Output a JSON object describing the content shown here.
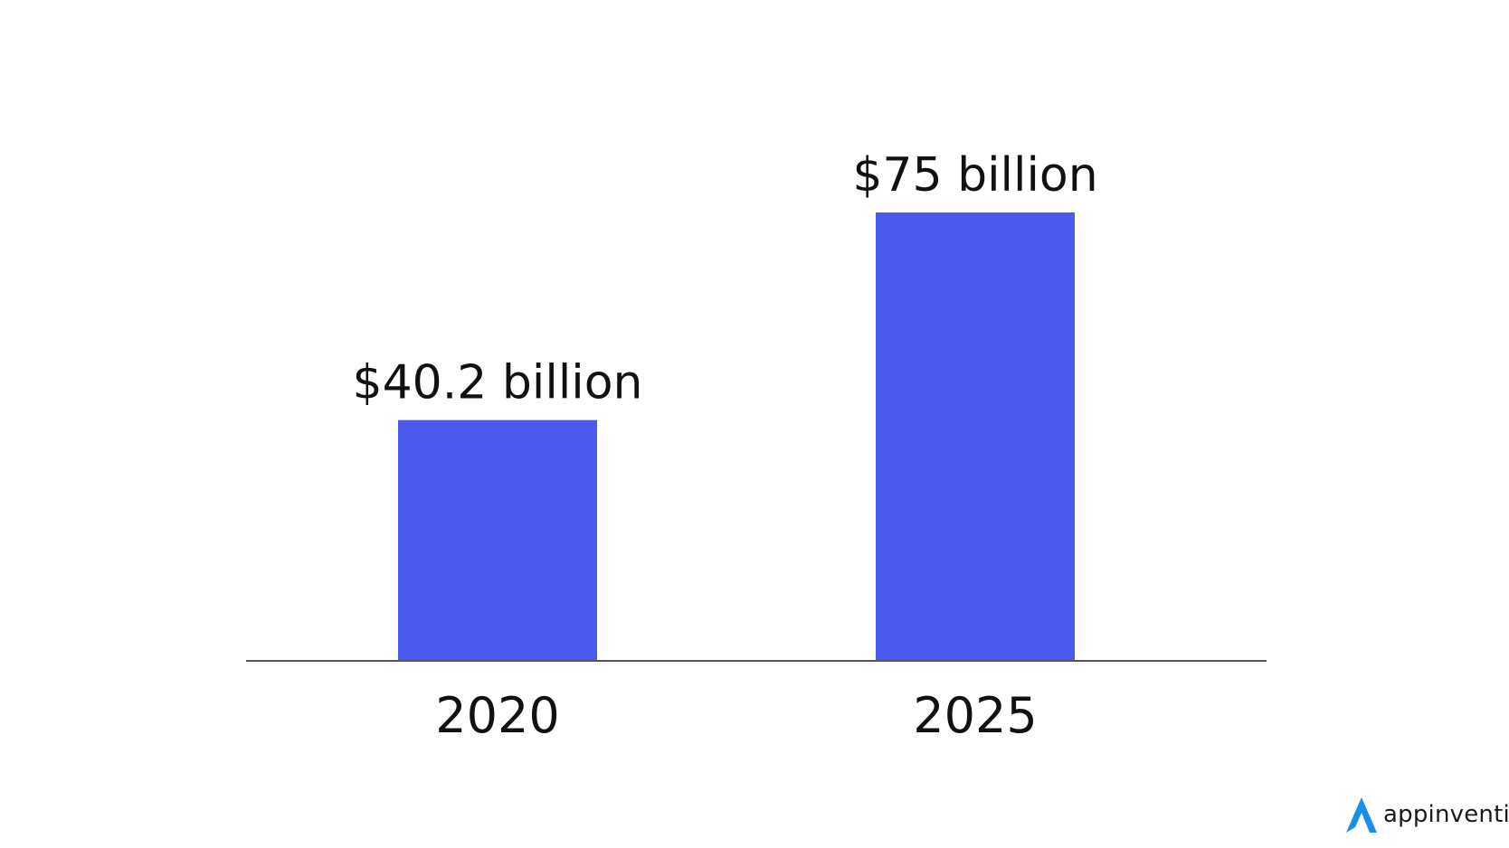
{
  "chart_data": {
    "type": "bar",
    "categories": [
      "2020",
      "2025"
    ],
    "values": [
      40.2,
      75
    ],
    "data_labels": [
      "$40.2 billion",
      "$75 billion"
    ],
    "title": "",
    "xlabel": "",
    "ylabel": "",
    "ylim": [
      0,
      75
    ],
    "grid": false,
    "legend": "none",
    "bar_color": "#4b5aed",
    "axis_color": "#555555"
  },
  "logo": {
    "text": "appinventiv",
    "mark_color": "#1a8fe8"
  }
}
